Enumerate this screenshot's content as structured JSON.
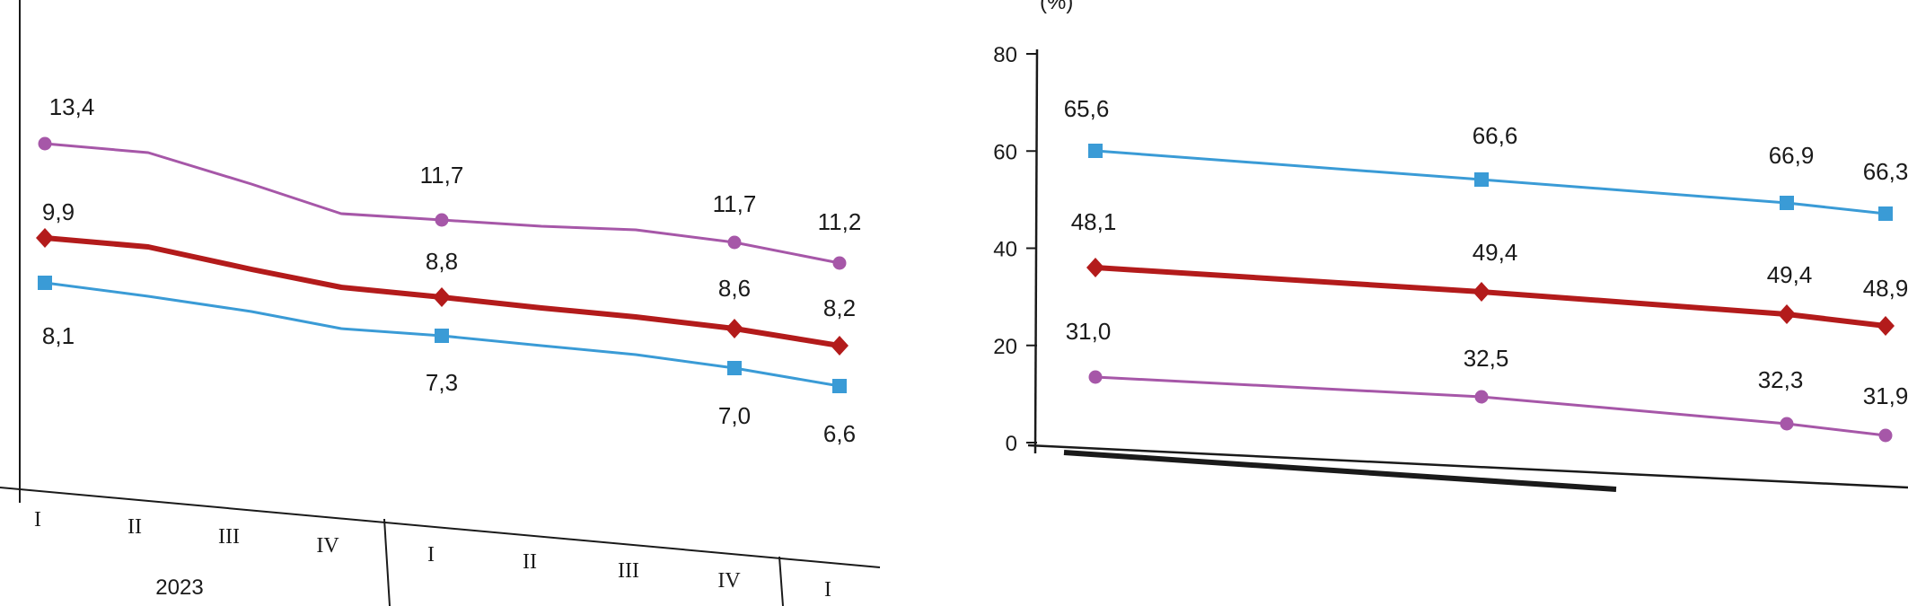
{
  "colors": {
    "purple": "#a657a8",
    "red": "#b31b1b",
    "blue": "#3a9bd6",
    "axis": "#1a1a1a"
  },
  "chart_data": [
    {
      "type": "line",
      "title": "",
      "x": [
        "I",
        "II",
        "III",
        "IV",
        "I",
        "II",
        "III",
        "IV",
        "I"
      ],
      "year_labels": [
        "2023"
      ],
      "series": [
        {
          "color": "#a657a8",
          "marker": "circle",
          "values": [
            13.4,
            13.0,
            11.9,
            11.7,
            11.7,
            11.6,
            11.5,
            11.7,
            11.2
          ],
          "labels": [
            "13,4",
            "11,7",
            "11,7",
            "11,2"
          ],
          "labeled_index": [
            0,
            4,
            7,
            8
          ]
        },
        {
          "color": "#b31b1b",
          "marker": "diamond",
          "values": [
            9.9,
            9.7,
            9.1,
            8.8,
            8.8,
            8.7,
            8.7,
            8.6,
            8.2
          ],
          "labels": [
            "9,9",
            "8,8",
            "8,6",
            "8,2"
          ],
          "labeled_index": [
            0,
            4,
            7,
            8
          ]
        },
        {
          "color": "#3a9bd6",
          "marker": "square",
          "values": [
            8.1,
            7.9,
            7.6,
            7.3,
            7.3,
            7.2,
            7.1,
            7.0,
            6.6
          ],
          "labels": [
            "8,1",
            "7,3",
            "7,0",
            "6,6"
          ],
          "labeled_index": [
            0,
            4,
            7,
            8
          ]
        }
      ]
    },
    {
      "type": "line",
      "title": "",
      "ylabel": "(%)",
      "ylim": [
        0,
        80
      ],
      "yticks": [
        "0",
        "20",
        "40",
        "60",
        "80"
      ],
      "series": [
        {
          "color": "#3a9bd6",
          "marker": "square",
          "values": [
            65.6,
            66.6,
            66.9,
            66.3
          ],
          "labels": [
            "65,6",
            "66,6",
            "66,9",
            "66,3"
          ]
        },
        {
          "color": "#b31b1b",
          "marker": "diamond",
          "values": [
            48.1,
            49.4,
            49.4,
            48.9
          ],
          "labels": [
            "48,1",
            "49,4",
            "49,4",
            "48,9"
          ]
        },
        {
          "color": "#a657a8",
          "marker": "circle",
          "values": [
            31.0,
            32.5,
            32.3,
            31.9
          ],
          "labels": [
            "31,0",
            "32,5",
            "32,3",
            "31,9"
          ]
        }
      ]
    }
  ]
}
